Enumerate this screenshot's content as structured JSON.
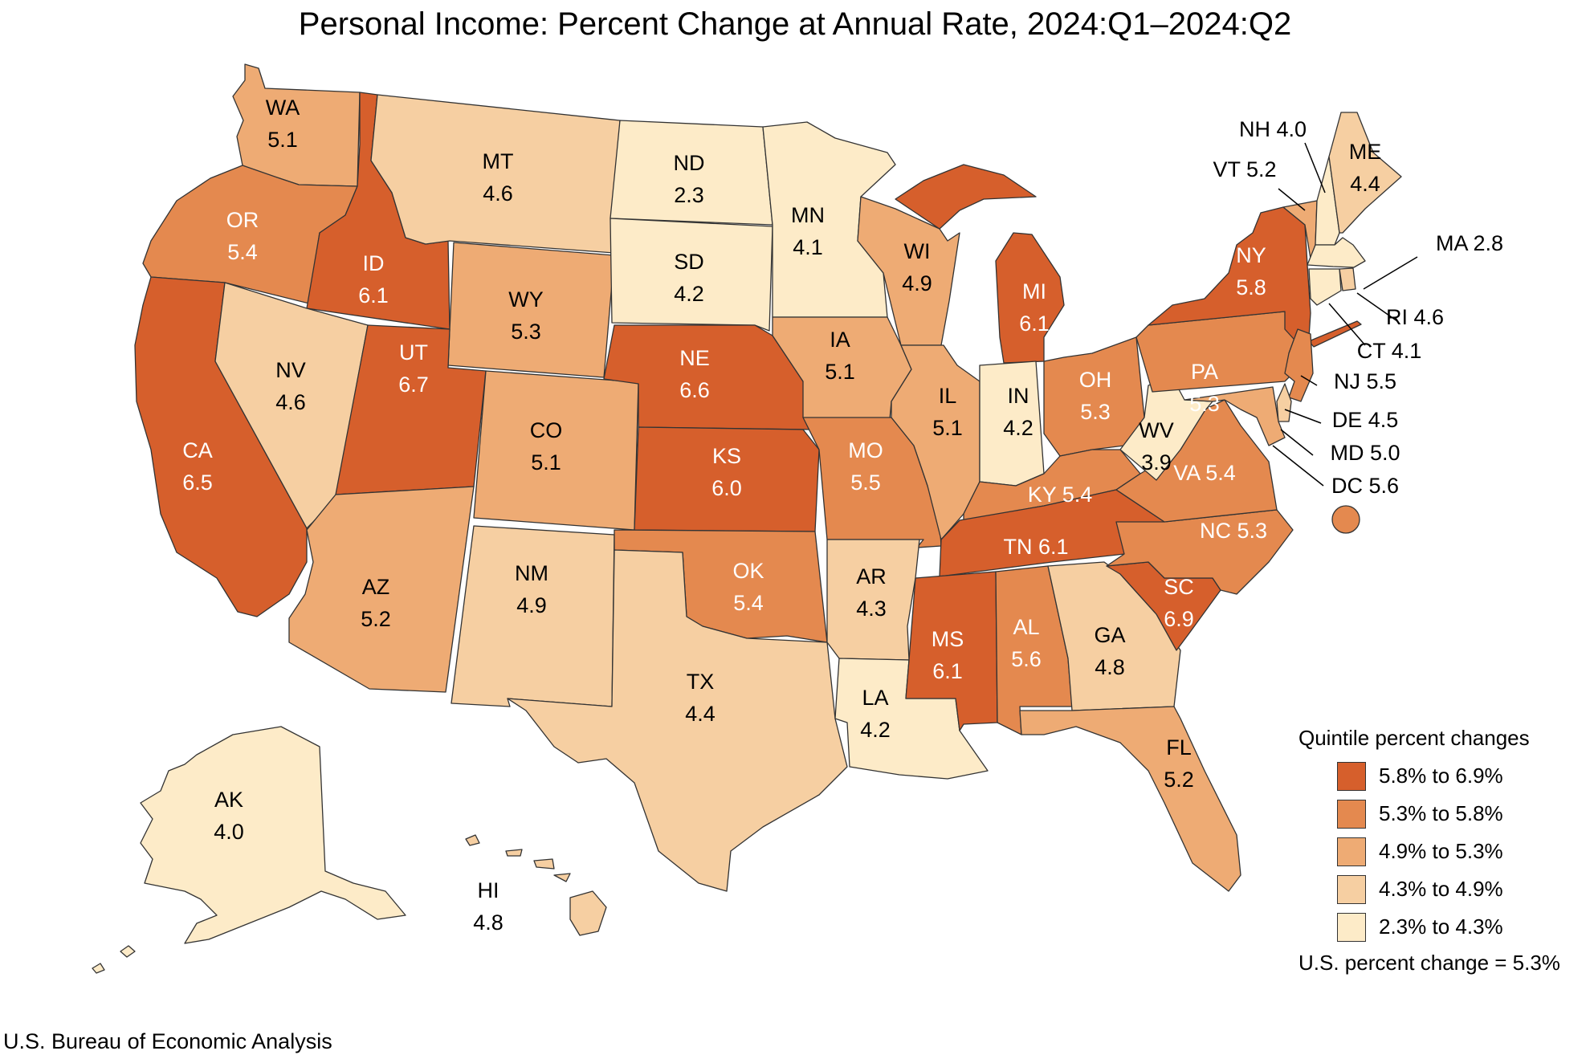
{
  "title": "Personal Income: Percent Change at Annual Rate, 2024:Q1–2024:Q2",
  "source": "U.S. Bureau of Economic Analysis",
  "colors": {
    "q5": "#d65f2c",
    "q4": "#e4894f",
    "q3": "#eeab74",
    "q2": "#f6cfa2",
    "q1": "#fdebc8"
  },
  "legend": {
    "title": "Quintile percent changes",
    "items": [
      {
        "label": "5.8% to 6.9%",
        "quintile": "q5"
      },
      {
        "label": "5.3% to 5.8%",
        "quintile": "q4"
      },
      {
        "label": "4.9% to 5.3%",
        "quintile": "q3"
      },
      {
        "label": "4.3% to 4.9%",
        "quintile": "q2"
      },
      {
        "label": "2.3% to 4.3%",
        "quintile": "q1"
      }
    ],
    "us_note": "U.S. percent change = 5.3%"
  },
  "states": {
    "WA": {
      "abbr": "WA",
      "value": "5.1",
      "quintile": "q3"
    },
    "OR": {
      "abbr": "OR",
      "value": "5.4",
      "quintile": "q4"
    },
    "CA": {
      "abbr": "CA",
      "value": "6.5",
      "quintile": "q5"
    },
    "ID": {
      "abbr": "ID",
      "value": "6.1",
      "quintile": "q5"
    },
    "NV": {
      "abbr": "NV",
      "value": "4.6",
      "quintile": "q2"
    },
    "MT": {
      "abbr": "MT",
      "value": "4.6",
      "quintile": "q2"
    },
    "WY": {
      "abbr": "WY",
      "value": "5.3",
      "quintile": "q3"
    },
    "UT": {
      "abbr": "UT",
      "value": "6.7",
      "quintile": "q5"
    },
    "AZ": {
      "abbr": "AZ",
      "value": "5.2",
      "quintile": "q3"
    },
    "CO": {
      "abbr": "CO",
      "value": "5.1",
      "quintile": "q3"
    },
    "NM": {
      "abbr": "NM",
      "value": "4.9",
      "quintile": "q2"
    },
    "ND": {
      "abbr": "ND",
      "value": "2.3",
      "quintile": "q1"
    },
    "SD": {
      "abbr": "SD",
      "value": "4.2",
      "quintile": "q1"
    },
    "NE": {
      "abbr": "NE",
      "value": "6.6",
      "quintile": "q5"
    },
    "KS": {
      "abbr": "KS",
      "value": "6.0",
      "quintile": "q5"
    },
    "OK": {
      "abbr": "OK",
      "value": "5.4",
      "quintile": "q4"
    },
    "TX": {
      "abbr": "TX",
      "value": "4.4",
      "quintile": "q2"
    },
    "MN": {
      "abbr": "MN",
      "value": "4.1",
      "quintile": "q1"
    },
    "IA": {
      "abbr": "IA",
      "value": "5.1",
      "quintile": "q3"
    },
    "MO": {
      "abbr": "MO",
      "value": "5.5",
      "quintile": "q4"
    },
    "AR": {
      "abbr": "AR",
      "value": "4.3",
      "quintile": "q2"
    },
    "LA": {
      "abbr": "LA",
      "value": "4.2",
      "quintile": "q1"
    },
    "WI": {
      "abbr": "WI",
      "value": "4.9",
      "quintile": "q3"
    },
    "IL": {
      "abbr": "IL",
      "value": "5.1",
      "quintile": "q3"
    },
    "MI": {
      "abbr": "MI",
      "value": "6.1",
      "quintile": "q5"
    },
    "IN": {
      "abbr": "IN",
      "value": "4.2",
      "quintile": "q1"
    },
    "OH": {
      "abbr": "OH",
      "value": "5.3",
      "quintile": "q4"
    },
    "KY": {
      "abbr": "KY",
      "value": "5.4",
      "quintile": "q4"
    },
    "TN": {
      "abbr": "TN",
      "value": "6.1",
      "quintile": "q5"
    },
    "MS": {
      "abbr": "MS",
      "value": "6.1",
      "quintile": "q5"
    },
    "AL": {
      "abbr": "AL",
      "value": "5.6",
      "quintile": "q4"
    },
    "GA": {
      "abbr": "GA",
      "value": "4.8",
      "quintile": "q2"
    },
    "FL": {
      "abbr": "FL",
      "value": "5.2",
      "quintile": "q3"
    },
    "SC": {
      "abbr": "SC",
      "value": "6.9",
      "quintile": "q5"
    },
    "NC": {
      "abbr": "NC",
      "value": "5.3",
      "quintile": "q4"
    },
    "VA": {
      "abbr": "VA",
      "value": "5.4",
      "quintile": "q4"
    },
    "WV": {
      "abbr": "WV",
      "value": "3.9",
      "quintile": "q1"
    },
    "PA": {
      "abbr": "PA",
      "value": "5.3",
      "quintile": "q4"
    },
    "NY": {
      "abbr": "NY",
      "value": "5.8",
      "quintile": "q5"
    },
    "NJ": {
      "abbr": "NJ",
      "value": "5.5",
      "quintile": "q4"
    },
    "DE": {
      "abbr": "DE",
      "value": "4.5",
      "quintile": "q2"
    },
    "MD": {
      "abbr": "MD",
      "value": "5.0",
      "quintile": "q3"
    },
    "DC": {
      "abbr": "DC",
      "value": "5.6",
      "quintile": "q4"
    },
    "VT": {
      "abbr": "VT",
      "value": "5.2",
      "quintile": "q3"
    },
    "NH": {
      "abbr": "NH",
      "value": "4.0",
      "quintile": "q1"
    },
    "ME": {
      "abbr": "ME",
      "value": "4.4",
      "quintile": "q2"
    },
    "MA": {
      "abbr": "MA",
      "value": "2.8",
      "quintile": "q1"
    },
    "RI": {
      "abbr": "RI",
      "value": "4.6",
      "quintile": "q2"
    },
    "CT": {
      "abbr": "CT",
      "value": "4.1",
      "quintile": "q1"
    },
    "AK": {
      "abbr": "AK",
      "value": "4.0",
      "quintile": "q1"
    },
    "HI": {
      "abbr": "HI",
      "value": "4.8",
      "quintile": "q2"
    }
  }
}
